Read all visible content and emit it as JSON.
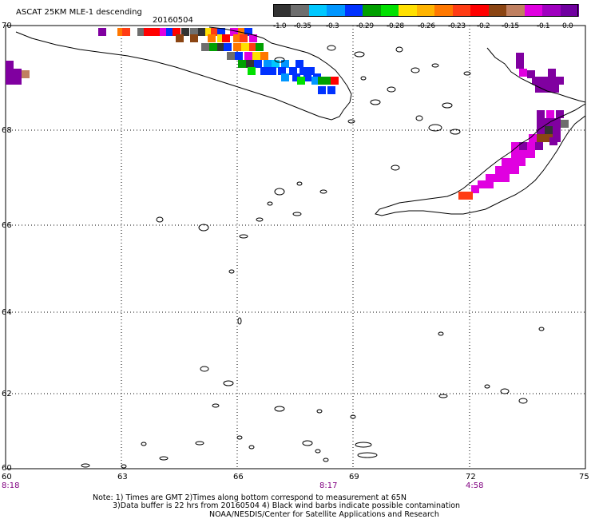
{
  "header": {
    "product": "ASCAT 25KM MLE-1 descending",
    "date": "20160504"
  },
  "colorbar": {
    "labels": [
      "-1.0",
      "-0.35",
      "-0.3",
      "-0.29",
      "-0.28",
      "-0.26",
      "-0.23",
      "-0.2",
      "-0.15",
      "-0.1",
      "0.0"
    ],
    "colors": [
      "#333333",
      "#6e6e6e",
      "#00c8ff",
      "#0096ff",
      "#0032ff",
      "#00a000",
      "#00e000",
      "#ffe000",
      "#ffb400",
      "#ff7800",
      "#ff3c14",
      "#ff0000",
      "#8b4513",
      "#c08060",
      "#e000e0",
      "#a000c0",
      "#7000a0"
    ]
  },
  "axes": {
    "lat_labels": [
      "70",
      "68",
      "66",
      "64",
      "62",
      "60"
    ],
    "lon_labels": [
      "60",
      "63",
      "66",
      "69",
      "72",
      "75"
    ],
    "time_labels": [
      "8:18",
      "8:17",
      "4:58"
    ]
  },
  "notes": {
    "line1": "Note: 1) Times are GMT 2)Times along bottom correspond to measurement at 65N",
    "line2": "3)Data buffer is 22 hrs from 20160504 4) Black wind barbs indicate possible contamination",
    "line3": "NOAA/NESDIS/Center for Satellite Applications and Research"
  },
  "icons": {
    "map_grid": "dotted-lat-lon-grid",
    "coastline": "black-outline-coastline"
  }
}
